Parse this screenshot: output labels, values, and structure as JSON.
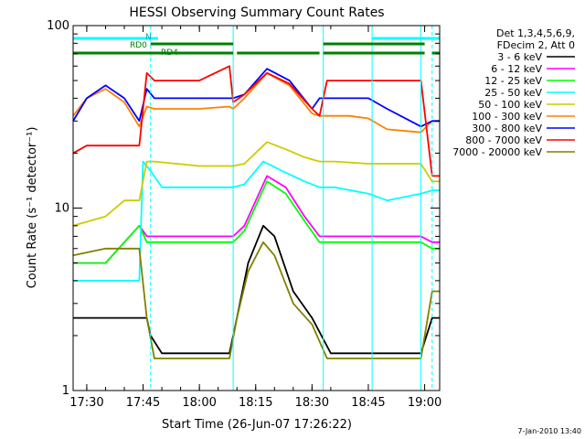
{
  "chart_data": {
    "type": "line",
    "title": "HESSI Observing Summary Count Rates",
    "xlabel": "Start Time (26-Jun-07 17:26:22)",
    "ylabel": "Count Rate (s⁻¹ detector⁻¹)",
    "y_scale": "log",
    "ylim": [
      1,
      100
    ],
    "xlim": [
      "17:26:22",
      "19:04:00"
    ],
    "grid": false,
    "legend_position": "right",
    "x_ticks": [
      "17:30",
      "17:45",
      "18:00",
      "18:15",
      "18:30",
      "18:45",
      "19:00"
    ],
    "y_ticks": [
      "1",
      "10",
      "100"
    ],
    "legend_header": [
      "Det 1,3,4,5,6,9,",
      "FDecim 2, Att 0"
    ],
    "status_bars": [
      {
        "label": "N",
        "color": "#00ffff",
        "segments": [
          [
            "17:26:22",
            "17:49:00"
          ],
          [
            "18:46:00",
            "19:04:00"
          ]
        ]
      },
      {
        "label": "RD0",
        "color": "#008000",
        "segments": [
          [
            "17:47:00",
            "18:09:00"
          ],
          [
            "18:33:00",
            "19:00:00"
          ]
        ]
      },
      {
        "label": "RD4",
        "color": "#008000",
        "segments": [
          [
            "17:26:22",
            "18:09:00"
          ],
          [
            "18:10:00",
            "18:32:00"
          ],
          [
            "18:33:00",
            "19:00:00"
          ],
          [
            "19:02:00",
            "19:04:00"
          ]
        ]
      }
    ],
    "vlines": [
      {
        "time": "17:47:00",
        "color": "#00ffff",
        "style": "dashed"
      },
      {
        "time": "18:09:00",
        "color": "#00ffff",
        "style": "solid"
      },
      {
        "time": "18:33:00",
        "color": "#00ffff",
        "style": "solid"
      },
      {
        "time": "18:46:00",
        "color": "#00ffff",
        "style": "solid"
      },
      {
        "time": "18:59:00",
        "color": "#00ffff",
        "style": "solid"
      },
      {
        "time": "19:02:00",
        "color": "#00ffff",
        "style": "dashed"
      }
    ],
    "series": [
      {
        "name": "3 - 6 keV",
        "color": "#000000",
        "x": [
          "17:26:22",
          "17:30",
          "17:45",
          "17:46",
          "17:47",
          "17:50",
          "18:00",
          "18:08",
          "18:10",
          "18:13",
          "18:17",
          "18:20",
          "18:25",
          "18:30",
          "18:35",
          "18:45",
          "18:50",
          "18:59",
          "19:02",
          "19:04"
        ],
        "y": [
          2.5,
          2.5,
          2.5,
          2.5,
          2.0,
          1.6,
          1.6,
          1.6,
          2.5,
          5.0,
          8.0,
          7.0,
          3.5,
          2.5,
          1.6,
          1.6,
          1.6,
          1.6,
          2.5,
          2.5
        ]
      },
      {
        "name": "6 - 12 keV",
        "color": "#ff00ff",
        "x": [
          "17:26:22",
          "17:35",
          "17:44",
          "17:46",
          "17:48",
          "18:00",
          "18:09",
          "18:12",
          "18:18",
          "18:23",
          "18:28",
          "18:32",
          "18:36",
          "18:50",
          "18:59",
          "19:02",
          "19:04"
        ],
        "y": [
          5.0,
          5.0,
          8.0,
          7.0,
          7.0,
          7.0,
          7.0,
          8.0,
          15.0,
          13.0,
          9.0,
          7.0,
          7.0,
          7.0,
          7.0,
          6.5,
          6.5
        ]
      },
      {
        "name": "12 - 25 keV",
        "color": "#00ff00",
        "x": [
          "17:26:22",
          "17:35",
          "17:44",
          "17:46",
          "17:48",
          "18:00",
          "18:09",
          "18:12",
          "18:18",
          "18:23",
          "18:28",
          "18:32",
          "18:36",
          "18:50",
          "18:59",
          "19:02",
          "19:04"
        ],
        "y": [
          5.0,
          5.0,
          8.0,
          6.5,
          6.5,
          6.5,
          6.5,
          7.5,
          14.0,
          12.0,
          8.5,
          6.5,
          6.5,
          6.5,
          6.5,
          6.0,
          6.0
        ]
      },
      {
        "name": "25 - 50 keV",
        "color": "#00ffff",
        "x": [
          "17:26:22",
          "17:32",
          "17:35",
          "17:44",
          "17:45",
          "17:47",
          "17:50",
          "18:00",
          "18:09",
          "18:12",
          "18:17",
          "18:22",
          "18:28",
          "18:32",
          "18:36",
          "18:45",
          "18:50",
          "18:59",
          "19:02",
          "19:04"
        ],
        "y": [
          4.0,
          4.0,
          4.0,
          4.0,
          18.0,
          16.0,
          13.0,
          13.0,
          13.0,
          13.5,
          18.0,
          16.0,
          14.0,
          13.0,
          13.0,
          12.0,
          11.0,
          12.0,
          12.5,
          12.5
        ]
      },
      {
        "name": "50 - 100 keV",
        "color": "#cccc00",
        "x": [
          "17:26:22",
          "17:35",
          "17:40",
          "17:44",
          "17:46",
          "17:48",
          "18:00",
          "18:09",
          "18:12",
          "18:18",
          "18:23",
          "18:28",
          "18:32",
          "18:36",
          "18:45",
          "18:50",
          "18:59",
          "19:02",
          "19:04"
        ],
        "y": [
          8.0,
          9.0,
          11.0,
          11.0,
          18.0,
          18.0,
          17.0,
          17.0,
          17.5,
          23.0,
          21.0,
          19.0,
          18.0,
          18.0,
          17.5,
          17.5,
          17.5,
          14.0,
          14.0
        ]
      },
      {
        "name": "100 - 300 keV",
        "color": "#ff8000",
        "x": [
          "17:26:22",
          "17:30",
          "17:35",
          "17:40",
          "17:44",
          "17:46",
          "17:48",
          "18:00",
          "18:08",
          "18:09",
          "18:12",
          "18:18",
          "18:24",
          "18:30",
          "18:32",
          "18:40",
          "18:45",
          "18:50",
          "18:59",
          "19:02",
          "19:04"
        ],
        "y": [
          32.0,
          40.0,
          45.0,
          38.0,
          28.0,
          36.0,
          35.0,
          35.0,
          36.0,
          35.0,
          40.0,
          55.0,
          47.0,
          33.0,
          32.0,
          32.0,
          31.0,
          27.0,
          26.0,
          30.0,
          30.0
        ]
      },
      {
        "name": "300 - 800 keV",
        "color": "#0000ff",
        "x": [
          "17:26:22",
          "17:30",
          "17:35",
          "17:40",
          "17:44",
          "17:46",
          "17:48",
          "18:00",
          "18:09",
          "18:12",
          "18:18",
          "18:24",
          "18:30",
          "18:32",
          "18:40",
          "18:45",
          "18:50",
          "18:59",
          "19:02",
          "19:04"
        ],
        "y": [
          30.0,
          40.0,
          47.0,
          40.0,
          30.0,
          45.0,
          40.0,
          40.0,
          40.0,
          42.0,
          58.0,
          50.0,
          35.0,
          40.0,
          40.0,
          40.0,
          35.0,
          28.0,
          30.0,
          30.0
        ]
      },
      {
        "name": "800 - 7000 keV",
        "color": "#ff0000",
        "x": [
          "17:26:22",
          "17:30",
          "17:40",
          "17:44",
          "17:46",
          "17:48",
          "18:00",
          "18:08",
          "18:09",
          "18:12",
          "18:18",
          "18:24",
          "18:30",
          "18:32",
          "18:34",
          "18:45",
          "18:50",
          "18:59",
          "19:02",
          "19:04"
        ],
        "y": [
          20.0,
          22.0,
          22.0,
          22.0,
          55.0,
          50.0,
          50.0,
          60.0,
          38.0,
          42.0,
          55.0,
          48.0,
          35.0,
          32.0,
          50.0,
          50.0,
          50.0,
          50.0,
          15.0,
          15.0
        ]
      },
      {
        "name": "7000 - 20000 keV",
        "color": "#808000",
        "x": [
          "17:26:22",
          "17:35",
          "17:44",
          "17:46",
          "17:48",
          "18:00",
          "18:08",
          "18:10",
          "18:13",
          "18:17",
          "18:20",
          "18:25",
          "18:30",
          "18:34",
          "18:45",
          "18:50",
          "18:59",
          "19:02",
          "19:04"
        ],
        "y": [
          5.5,
          6.0,
          6.0,
          2.5,
          1.5,
          1.5,
          1.5,
          2.5,
          4.5,
          6.5,
          5.5,
          3.0,
          2.3,
          1.5,
          1.5,
          1.5,
          1.5,
          3.5,
          3.5
        ]
      }
    ]
  },
  "footer": {
    "timestamp": "7-Jan-2010 13:40"
  }
}
